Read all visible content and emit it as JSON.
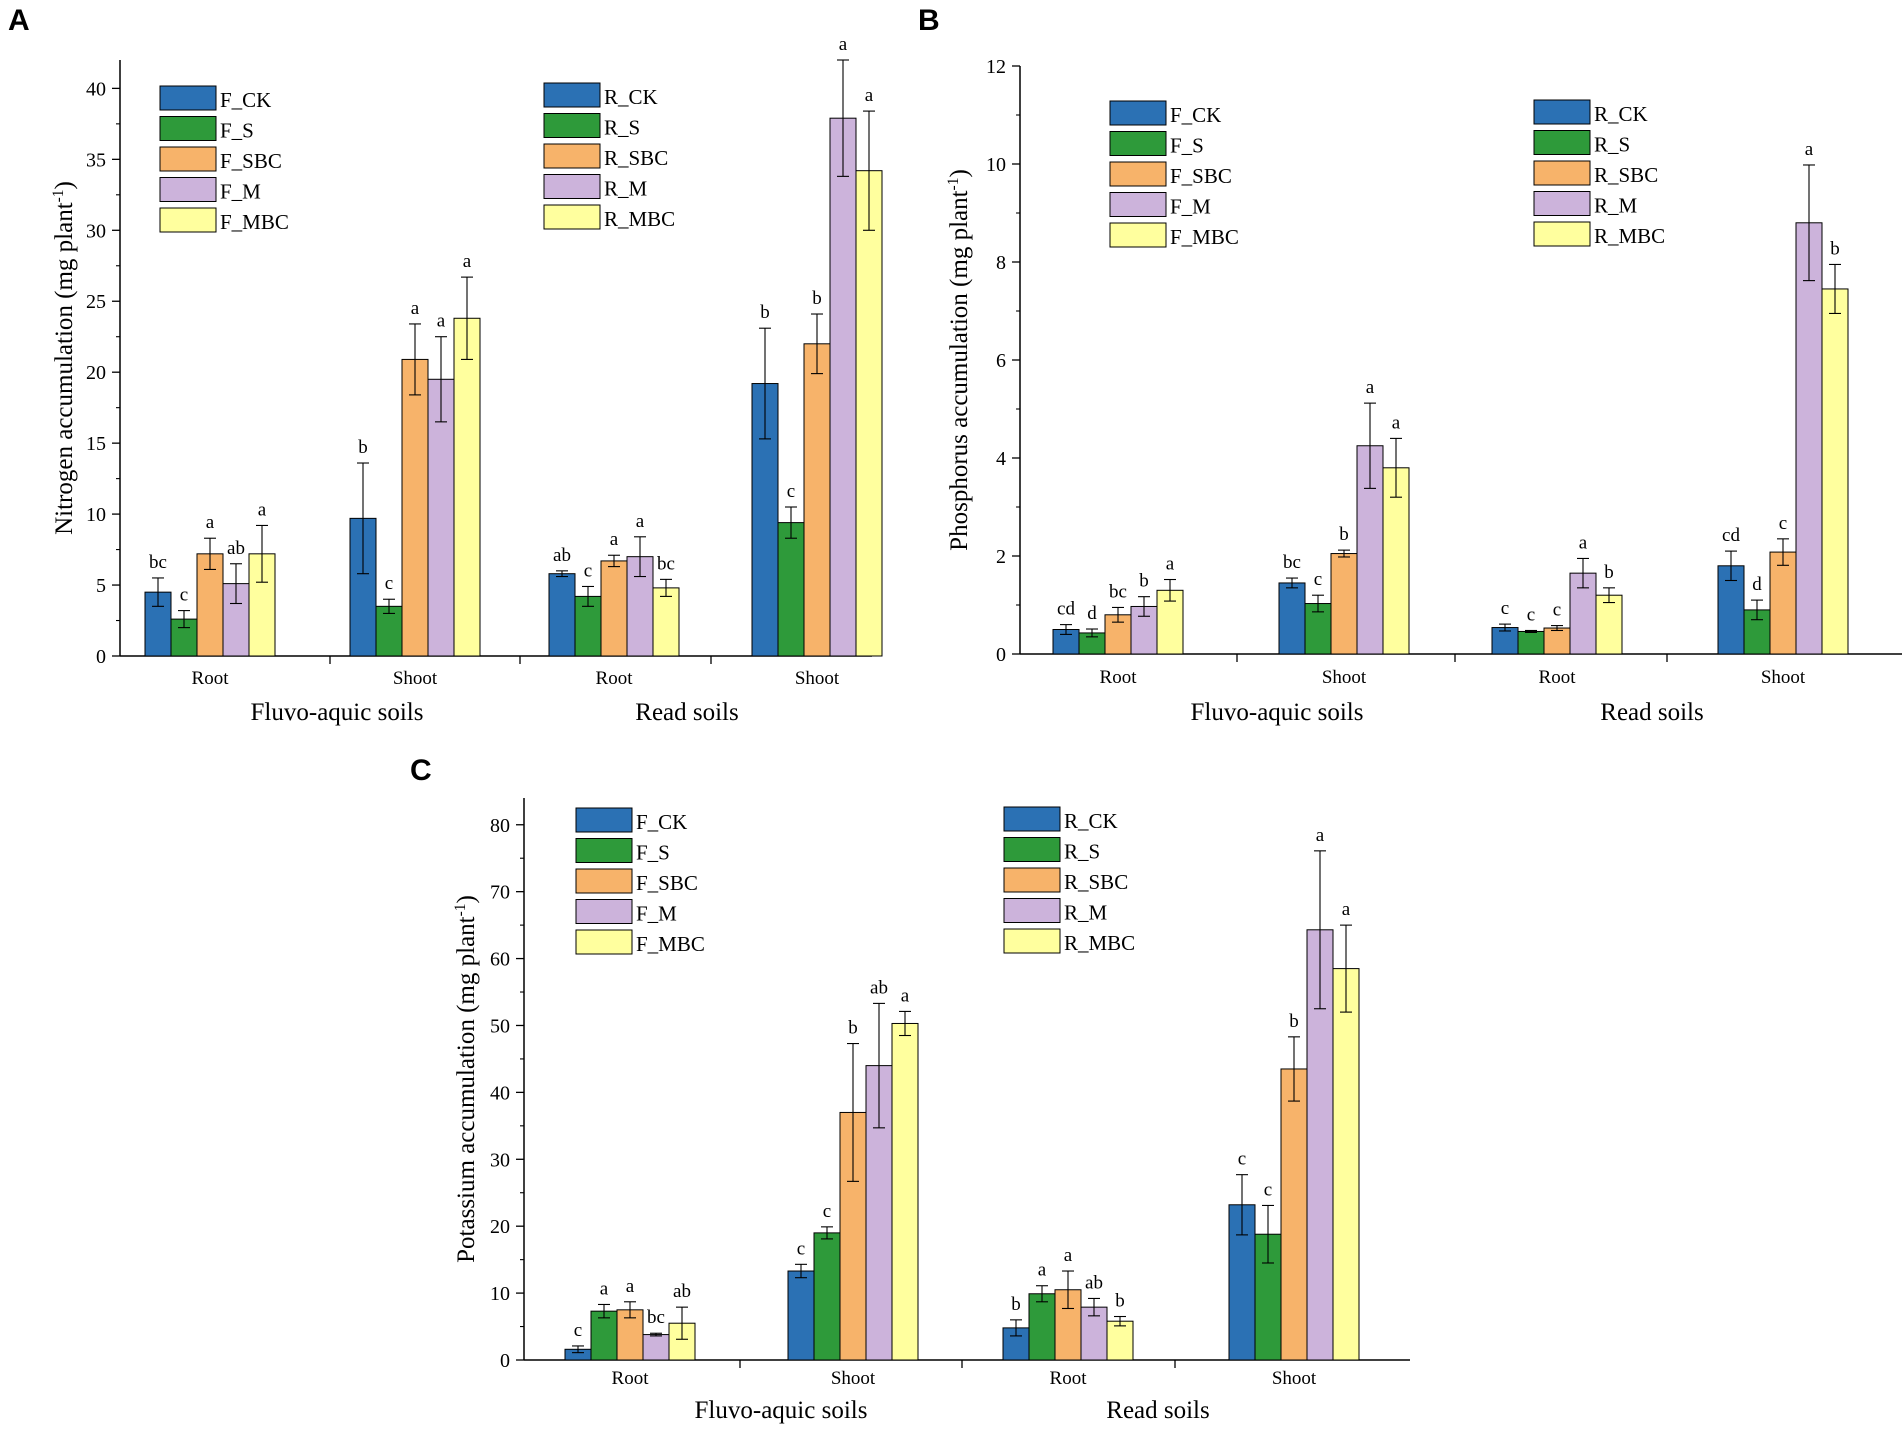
{
  "figure": {
    "colors": {
      "CK": "#2b71b4",
      "S": "#2e9a3a",
      "SBC": "#f7b36a",
      "M": "#ccb3db",
      "MBC": "#ffff9e"
    }
  },
  "chart_data": [
    {
      "panel": "A",
      "type": "bar",
      "ylabel_main": "Nitrogen accumulation (mg plant",
      "ylabel_sup": "-1",
      "ylabel_close": ")",
      "ylim": [
        0,
        42
      ],
      "yticks": [
        0,
        5,
        10,
        15,
        20,
        25,
        30,
        35,
        40
      ],
      "groups": [
        {
          "label": "Root",
          "soil": "Fluvo-aquic soils",
          "values": [
            4.5,
            2.6,
            7.2,
            5.1,
            7.2
          ],
          "errors": [
            1.0,
            0.6,
            1.1,
            1.4,
            2.0
          ],
          "letters": [
            "bc",
            "c",
            "a",
            "ab",
            "a"
          ]
        },
        {
          "label": "Shoot",
          "soil": "Fluvo-aquic soils",
          "values": [
            9.7,
            3.5,
            20.9,
            19.5,
            23.8
          ],
          "errors": [
            3.9,
            0.5,
            2.5,
            3.0,
            2.9
          ],
          "letters": [
            "b",
            "c",
            "a",
            "a",
            "a"
          ]
        },
        {
          "label": "Root",
          "soil": "Read soils",
          "values": [
            5.8,
            4.2,
            6.7,
            7.0,
            4.8
          ],
          "errors": [
            0.2,
            0.7,
            0.4,
            1.4,
            0.6
          ],
          "letters": [
            "ab",
            "c",
            "a",
            "a",
            "bc"
          ]
        },
        {
          "label": "Shoot",
          "soil": "Read soils",
          "values": [
            19.2,
            9.4,
            22.0,
            37.9,
            34.2
          ],
          "errors": [
            3.9,
            1.1,
            2.1,
            4.1,
            4.2
          ],
          "letters": [
            "b",
            "c",
            "b",
            "a",
            "a"
          ]
        }
      ],
      "soil_labels": [
        "Fluvo-aquic soils",
        "Read soils"
      ],
      "legend_left": [
        "F_CK",
        "F_S",
        "F_SBC",
        "F_M",
        "F_MBC"
      ],
      "legend_right": [
        "R_CK",
        "R_S",
        "R_SBC",
        "R_M",
        "R_MBC"
      ]
    },
    {
      "panel": "B",
      "type": "bar",
      "ylabel_main": "Phosphorus accumulation (mg plant",
      "ylabel_sup": "-1",
      "ylabel_close": ")",
      "ylim": [
        0,
        12
      ],
      "yticks": [
        0,
        2,
        4,
        6,
        8,
        10,
        12
      ],
      "groups": [
        {
          "label": "Root",
          "soil": "Fluvo-aquic soils",
          "values": [
            0.5,
            0.43,
            0.8,
            0.97,
            1.3
          ],
          "errors": [
            0.1,
            0.08,
            0.15,
            0.2,
            0.22
          ],
          "letters": [
            "cd",
            "d",
            "bc",
            "b",
            "a"
          ]
        },
        {
          "label": "Shoot",
          "soil": "Fluvo-aquic soils",
          "values": [
            1.45,
            1.03,
            2.05,
            4.25,
            3.8
          ],
          "errors": [
            0.1,
            0.17,
            0.07,
            0.87,
            0.6
          ],
          "letters": [
            "bc",
            "c",
            "b",
            "a",
            "a"
          ]
        },
        {
          "label": "Root",
          "soil": "Read soils",
          "values": [
            0.54,
            0.46,
            0.53,
            1.65,
            1.2
          ],
          "errors": [
            0.07,
            0.02,
            0.05,
            0.3,
            0.15
          ],
          "letters": [
            "c",
            "c",
            "c",
            "a",
            "b"
          ]
        },
        {
          "label": "Shoot",
          "soil": "Read soils",
          "values": [
            1.8,
            0.9,
            2.08,
            8.8,
            7.45
          ],
          "errors": [
            0.3,
            0.2,
            0.27,
            1.18,
            0.5
          ],
          "letters": [
            "cd",
            "d",
            "c",
            "a",
            "b"
          ]
        }
      ],
      "soil_labels": [
        "Fluvo-aquic soils",
        "Read soils"
      ],
      "legend_left": [
        "F_CK",
        "F_S",
        "F_SBC",
        "F_M",
        "F_MBC"
      ],
      "legend_right": [
        "R_CK",
        "R_S",
        "R_SBC",
        "R_M",
        "R_MBC"
      ]
    },
    {
      "panel": "C",
      "type": "bar",
      "ylabel_main": "Potassium accumulation (mg plant",
      "ylabel_sup": "-1",
      "ylabel_close": ")",
      "ylim": [
        0,
        84
      ],
      "yticks": [
        0,
        10,
        20,
        30,
        40,
        50,
        60,
        70,
        80
      ],
      "groups": [
        {
          "label": "Root",
          "soil": "Fluvo-aquic soils",
          "values": [
            1.6,
            7.3,
            7.5,
            3.8,
            5.5
          ],
          "errors": [
            0.5,
            1.0,
            1.2,
            0.2,
            2.4
          ],
          "letters": [
            "c",
            "a",
            "a",
            "bc",
            "ab"
          ]
        },
        {
          "label": "Shoot",
          "soil": "Fluvo-aquic soils",
          "values": [
            13.3,
            19.0,
            37.0,
            44.0,
            50.3
          ],
          "errors": [
            1.0,
            0.9,
            10.3,
            9.3,
            1.8
          ],
          "letters": [
            "c",
            "c",
            "b",
            "ab",
            "a"
          ]
        },
        {
          "label": "Root",
          "soil": "Read soils",
          "values": [
            4.8,
            9.9,
            10.5,
            7.9,
            5.8
          ],
          "errors": [
            1.2,
            1.2,
            2.8,
            1.3,
            0.7
          ],
          "letters": [
            "b",
            "a",
            "a",
            "ab",
            "b"
          ]
        },
        {
          "label": "Shoot",
          "soil": "Read soils",
          "values": [
            23.2,
            18.8,
            43.5,
            64.3,
            58.5
          ],
          "errors": [
            4.5,
            4.3,
            4.8,
            11.8,
            6.5
          ],
          "letters": [
            "c",
            "c",
            "b",
            "a",
            "a"
          ]
        }
      ],
      "soil_labels": [
        "Fluvo-aquic soils",
        "Read soils"
      ],
      "legend_left": [
        "F_CK",
        "F_S",
        "F_SBC",
        "F_M",
        "F_MBC"
      ],
      "legend_right": [
        "R_CK",
        "R_S",
        "R_SBC",
        "R_M",
        "R_MBC"
      ]
    }
  ]
}
